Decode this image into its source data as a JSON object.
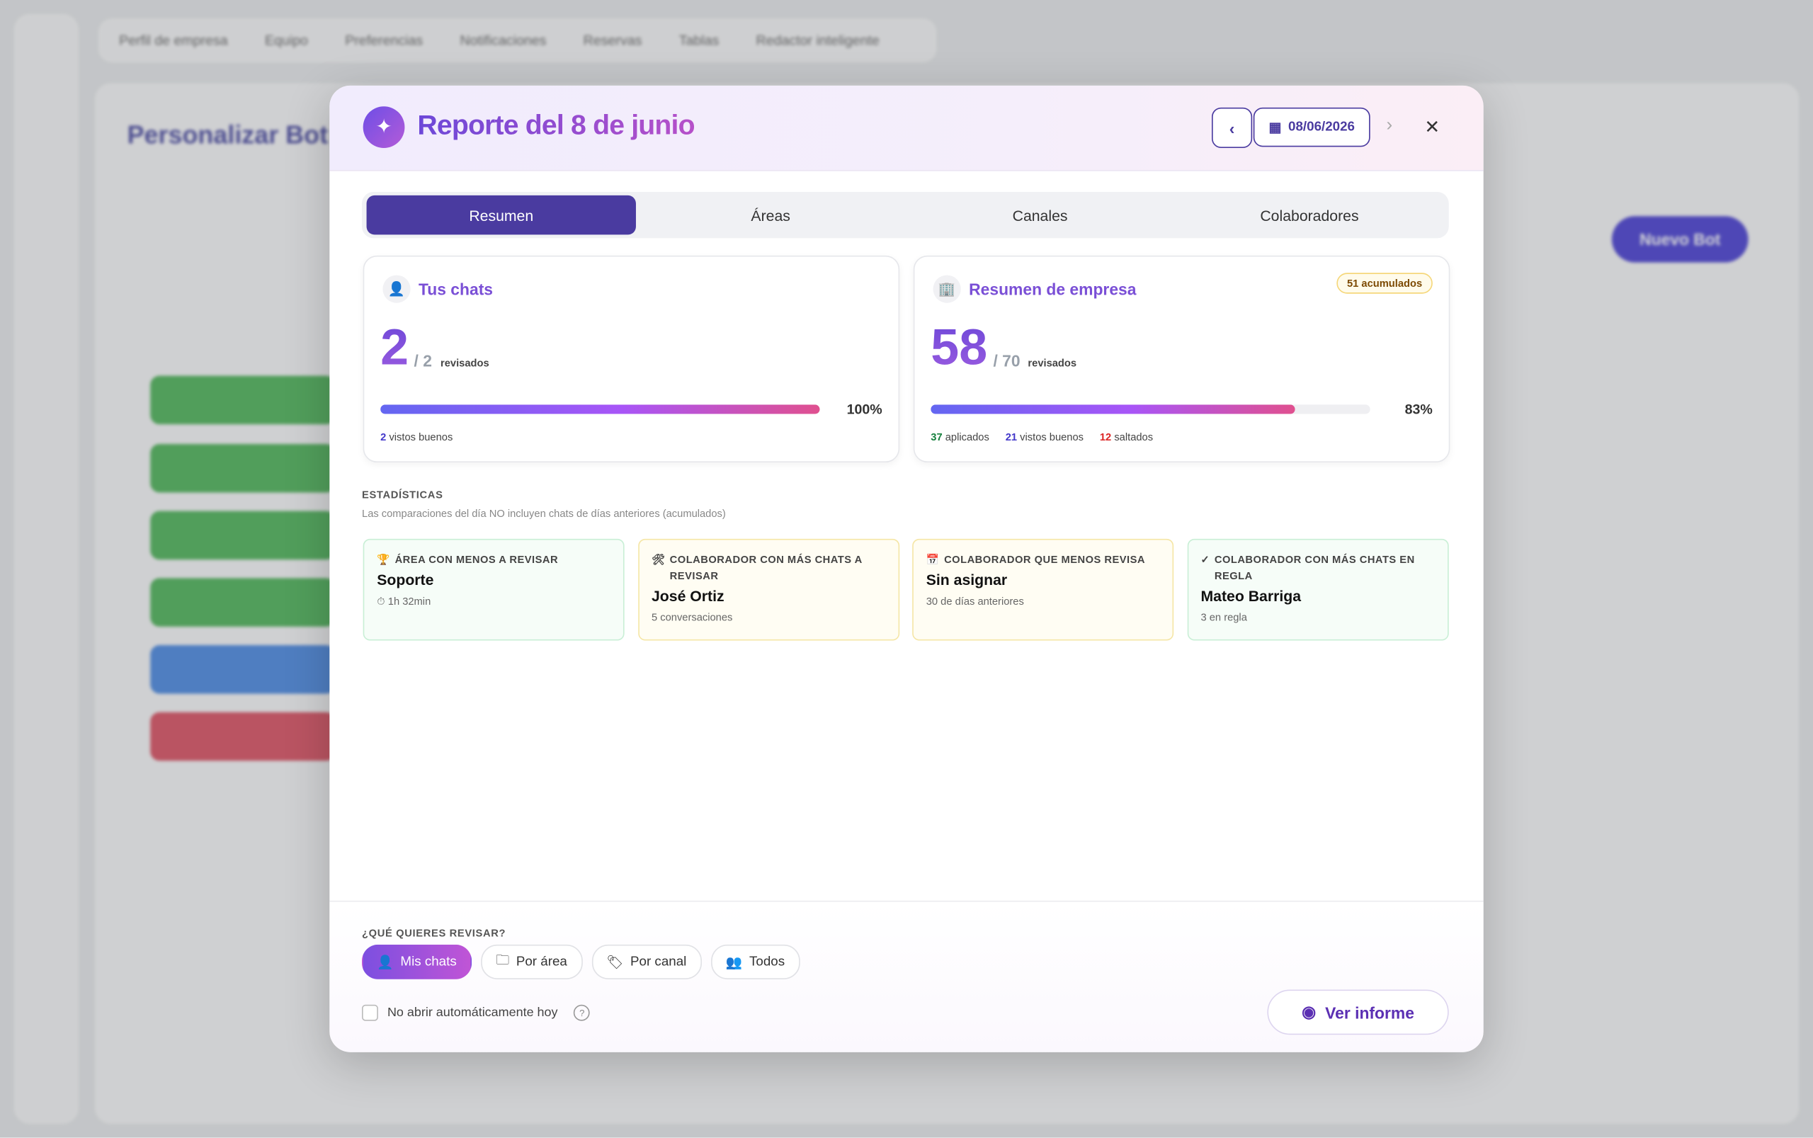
{
  "background": {
    "nav": [
      "Perfil de empresa",
      "Equipo",
      "Preferencias",
      "Notificaciones",
      "Reservas",
      "Tablas",
      "Redactor inteligente"
    ],
    "page_title": "Personalizar Bot",
    "new_bot": "Nuevo Bot"
  },
  "modal": {
    "title": "Reporte del 8 de junio",
    "date": "08/06/2026",
    "tabs": [
      "Resumen",
      "Áreas",
      "Canales",
      "Colaboradores"
    ],
    "my_chats": {
      "title": "Tus chats",
      "reviewed": 2,
      "total": 2,
      "unit": "revisados",
      "percent": "100%",
      "stats": [
        {
          "value": 2,
          "label": "vistos buenos",
          "color": "#4338ca"
        }
      ]
    },
    "company": {
      "title": "Resumen de empresa",
      "badge": "51 acumulados",
      "reviewed": 58,
      "total": 70,
      "unit": "revisados",
      "percent": "83%",
      "stats": [
        {
          "value": 37,
          "label": "aplicados",
          "color": "#15803d"
        },
        {
          "value": 21,
          "label": "vistos buenos",
          "color": "#4338ca"
        },
        {
          "value": 12,
          "label": "saltados",
          "color": "#dc2626"
        }
      ]
    },
    "stats_heading": "ESTADÍSTICAS",
    "stats_note": "Las comparaciones del día NO incluyen chats de días anteriores (acumulados)",
    "cards": [
      {
        "icon": "🏆",
        "label": "ÁREA CON MENOS A REVISAR",
        "value": "Soporte",
        "detail": "⏱ 1h 32min",
        "tone": "green"
      },
      {
        "icon": "🛠",
        "label": "COLABORADOR CON MÁS CHATS A REVISAR",
        "value": "José Ortiz",
        "detail": "5 conversaciones",
        "tone": "yellow"
      },
      {
        "icon": "📅",
        "label": "COLABORADOR QUE MENOS REVISA",
        "value": "Sin asignar",
        "detail": "30 de días anteriores",
        "tone": "yellow"
      },
      {
        "icon": "✓",
        "label": "COLABORADOR CON MÁS CHATS EN REGLA",
        "value": "Mateo Barriga",
        "detail": "3 en regla",
        "tone": "green"
      }
    ],
    "question": "¿QUÉ QUIERES REVISAR?",
    "filters": [
      "Mis chats",
      "Por área",
      "Por canal",
      "Todos"
    ],
    "checkbox": "No abrir automáticamente hoy",
    "cta": "Ver informe"
  }
}
